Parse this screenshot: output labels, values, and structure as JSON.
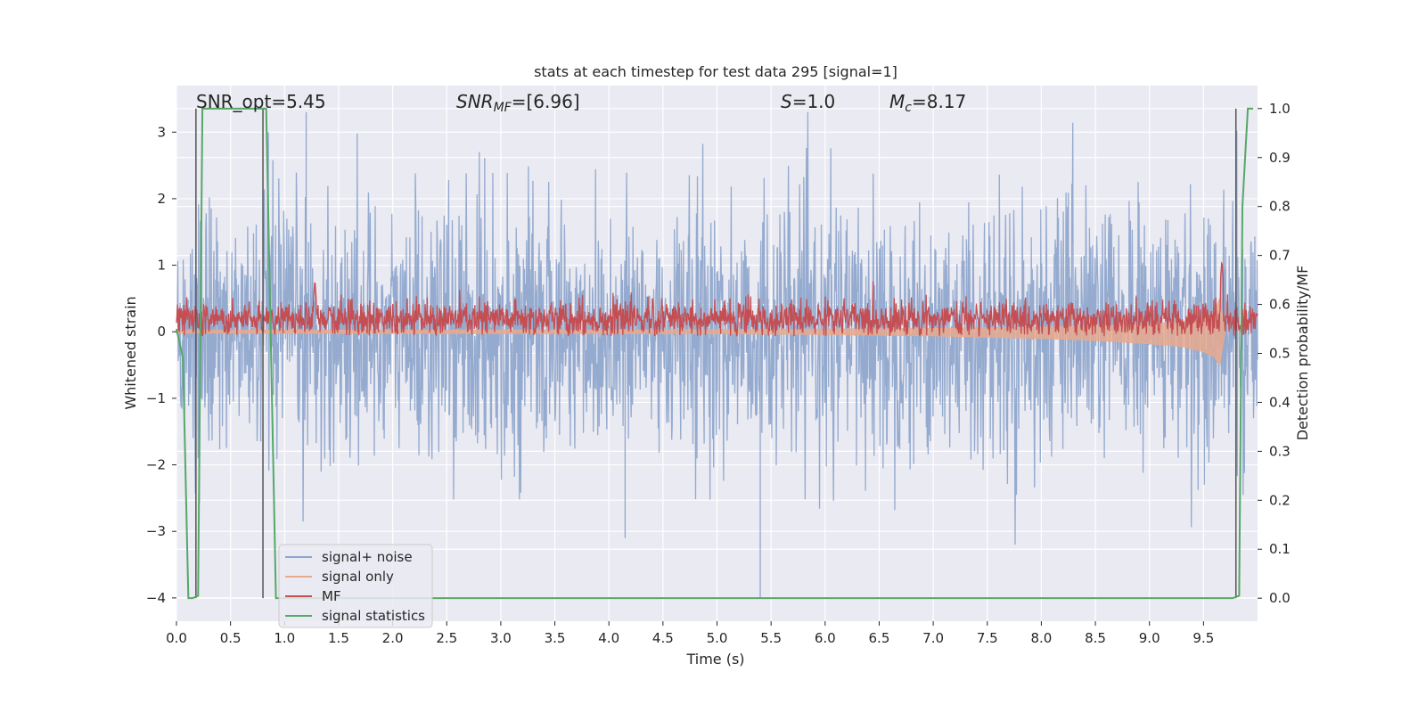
{
  "chart_data": {
    "type": "line",
    "title": "stats at each timestep for test data 295 [signal=1]",
    "xlabel": "Time (s)",
    "ylabel_left": "Whitened strain",
    "ylabel_right": "Detection probability/MF",
    "xlim": [
      0.0,
      10.0
    ],
    "ylim_left": [
      -4.35,
      3.7
    ],
    "ylim_right": [
      -0.047,
      1.047
    ],
    "x_ticks": [
      "0.0",
      "0.5",
      "1.0",
      "1.5",
      "2.0",
      "2.5",
      "3.0",
      "3.5",
      "4.0",
      "4.5",
      "5.0",
      "5.5",
      "6.0",
      "6.5",
      "7.0",
      "7.5",
      "8.0",
      "8.5",
      "9.0",
      "9.5"
    ],
    "y_left_ticks": [
      "3",
      "2",
      "1",
      "0",
      "−1",
      "−2",
      "−3",
      "−4"
    ],
    "y_right_ticks": [
      "1.0",
      "0.9",
      "0.8",
      "0.7",
      "0.6",
      "0.5",
      "0.4",
      "0.3",
      "0.2",
      "0.1",
      "0.0"
    ],
    "grid": true,
    "legend_position": "lower-left",
    "annotations": {
      "snr_opt": "SNR_opt=5.45",
      "snr_mf": "SNR_MF=[6.96]",
      "snr_mf_sub": "MF",
      "snr_mf_base": "SNR",
      "snr_mf_value": "=[6.96]",
      "s_base": "S",
      "s_value": "=1.0",
      "mc_base": "M",
      "mc_sub": "c",
      "mc_value": "=8.17"
    },
    "series": [
      {
        "name": "signal+ noise",
        "axis": "left",
        "color": "#8fa6cc",
        "description_values": "noise band spanning roughly -1.9 to 2.0 with spikes up to 3.3 and down to -4.0"
      },
      {
        "name": "signal only",
        "axis": "left",
        "color": "#e8a98e",
        "x": [
          0.0,
          5.0,
          6.0,
          7.0,
          8.0,
          8.5,
          9.0,
          9.3,
          9.5,
          9.6,
          9.65,
          9.7
        ],
        "upper": [
          0.02,
          0.03,
          0.04,
          0.05,
          0.07,
          0.09,
          0.12,
          0.15,
          0.2,
          0.3,
          0.5,
          0.0
        ],
        "lower": [
          -0.02,
          -0.03,
          -0.04,
          -0.06,
          -0.1,
          -0.13,
          -0.18,
          -0.22,
          -0.3,
          -0.38,
          -0.5,
          0.0
        ]
      },
      {
        "name": "MF",
        "axis": "right",
        "color": "#c44e52",
        "base": 0.57,
        "peaks": [
          {
            "x": 1.28,
            "y": 0.65
          },
          {
            "x": 9.67,
            "y": 0.69
          }
        ]
      },
      {
        "name": "signal statistics",
        "axis": "right",
        "color": "#55a868",
        "x": [
          0.0,
          0.06,
          0.11,
          0.15,
          0.2,
          0.24,
          0.8,
          0.83,
          0.92,
          0.95,
          9.77,
          9.83,
          9.86,
          9.91,
          9.96
        ],
        "y": [
          0.55,
          0.49,
          0.0,
          0.0,
          0.005,
          1.0,
          1.0,
          1.0,
          0.0,
          0.0,
          0.0,
          0.005,
          0.8,
          1.0,
          1.0
        ]
      }
    ],
    "vertical_lines": [
      0.18,
      0.8,
      9.8
    ]
  }
}
